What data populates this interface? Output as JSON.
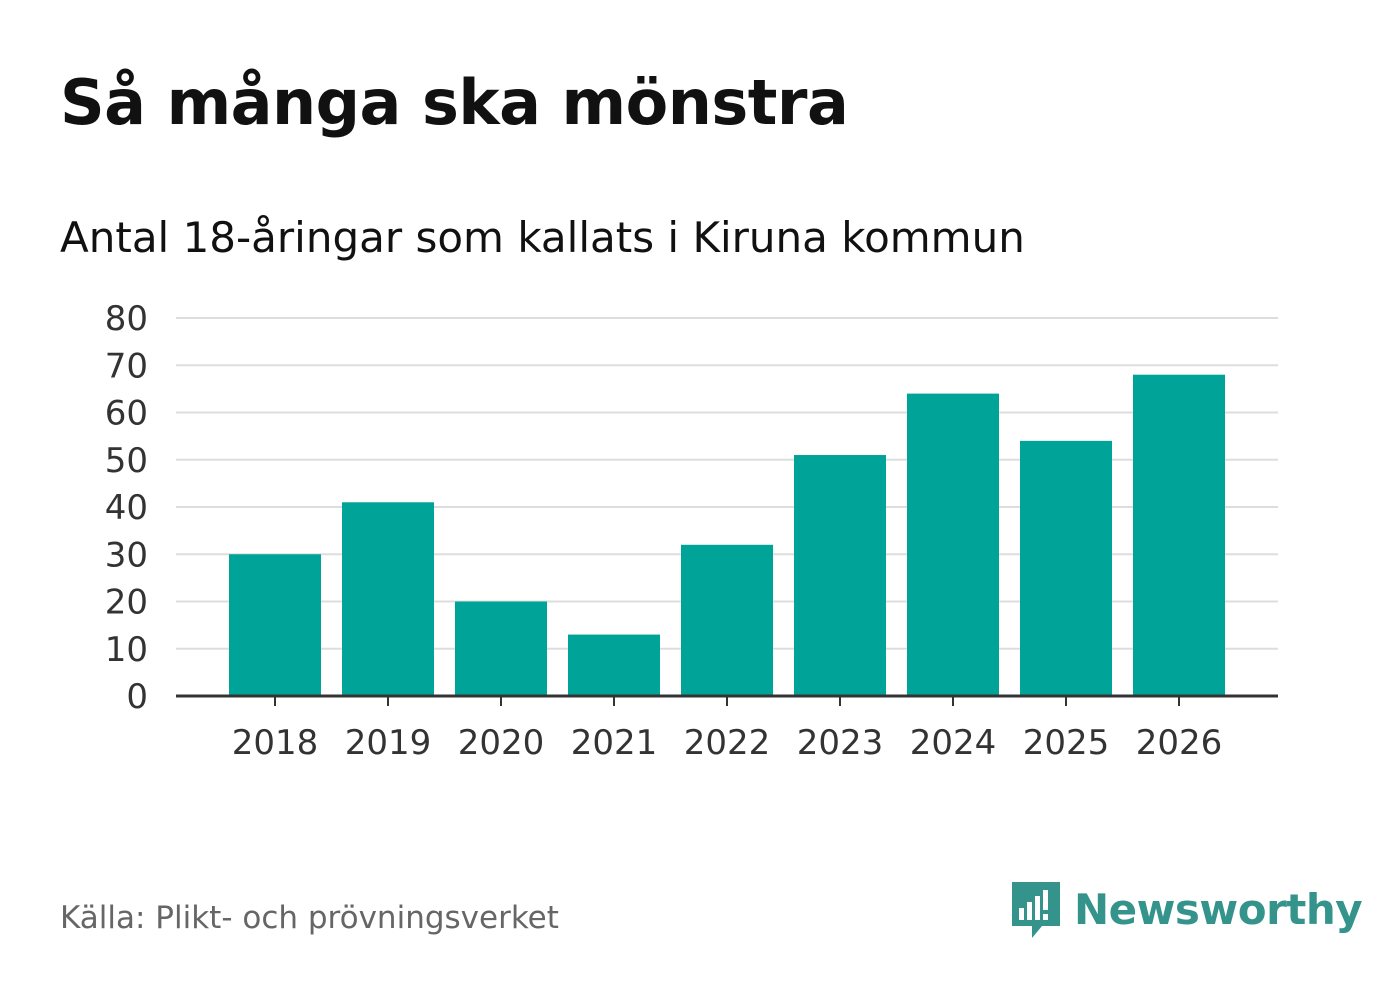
{
  "chart_data": {
    "type": "bar",
    "title": "Så många ska mönstra",
    "subtitle": "Antal 18-åringar som kallats i Kiruna kommun",
    "categories": [
      "2018",
      "2019",
      "2020",
      "2021",
      "2022",
      "2023",
      "2024",
      "2025",
      "2026"
    ],
    "values": [
      30,
      41,
      20,
      13,
      32,
      51,
      64,
      54,
      68
    ],
    "ylim": [
      0,
      80
    ],
    "yticks": [
      "0",
      "10",
      "20",
      "30",
      "40",
      "50",
      "60",
      "70",
      "80"
    ],
    "xlabel": "",
    "ylabel": "",
    "grid": true,
    "bar_color": "#00a398"
  },
  "footer": {
    "source": "Källa: Plikt- och prövningsverket",
    "brand": "Newsworthy",
    "brand_icon": "newsworthy-logo-icon",
    "brand_color": "#34938a"
  }
}
